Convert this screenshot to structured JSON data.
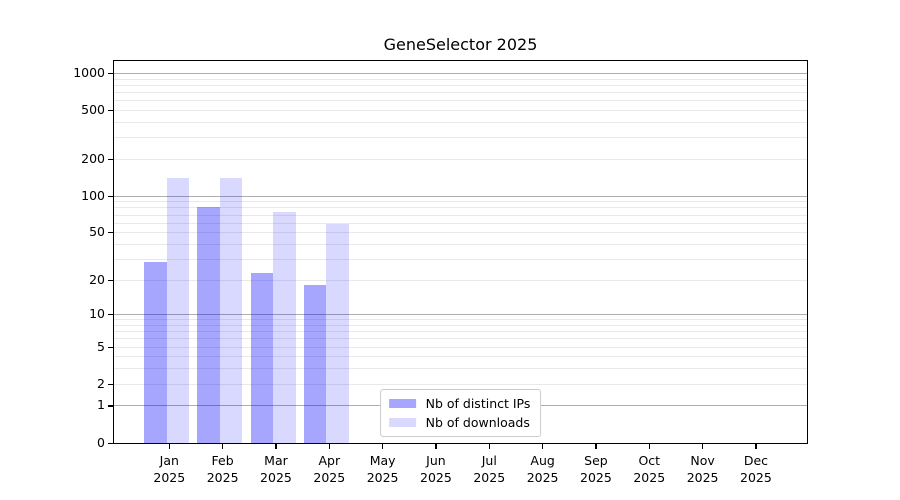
{
  "title": "GeneSelector 2025",
  "chart_data": {
    "type": "bar",
    "title": "GeneSelector 2025",
    "y_scale": "log10(value+1), 0 at baseline",
    "ylim": [
      0,
      1280
    ],
    "grid": "major gray lines at 1,10,100,1000; minor light lines at 2-9 of each decade",
    "legend_position": "lower center",
    "year_label": "2025",
    "categories": [
      "Jan",
      "Feb",
      "Mar",
      "Apr",
      "May",
      "Jun",
      "Jul",
      "Aug",
      "Sep",
      "Oct",
      "Nov",
      "Dec"
    ],
    "y_ticks": [
      0,
      1,
      2,
      5,
      10,
      20,
      50,
      100,
      200,
      500,
      1000
    ],
    "y_major_gridlines": [
      1,
      10,
      100,
      1000
    ],
    "series": [
      {
        "name": "Nb of distinct IPs",
        "fill": "rgba(0,0,255,0.35)",
        "hex_on_white": "#a6a6ff",
        "values": [
          28,
          80,
          23,
          18,
          0,
          0,
          0,
          0,
          0,
          0,
          0,
          0
        ]
      },
      {
        "name": "Nb of downloads",
        "fill": "rgba(0,0,255,0.15)",
        "hex_on_white": "#d9d9ff",
        "values": [
          140,
          140,
          74,
          59,
          0,
          0,
          0,
          0,
          0,
          0,
          0,
          0
        ]
      }
    ]
  },
  "colors": {
    "background": "#ffffff",
    "spine": "#000000",
    "major_grid": "#aeaeae",
    "minor_grid": "#e9e9e9",
    "legend_border": "#cccccc",
    "text": "#000000"
  }
}
